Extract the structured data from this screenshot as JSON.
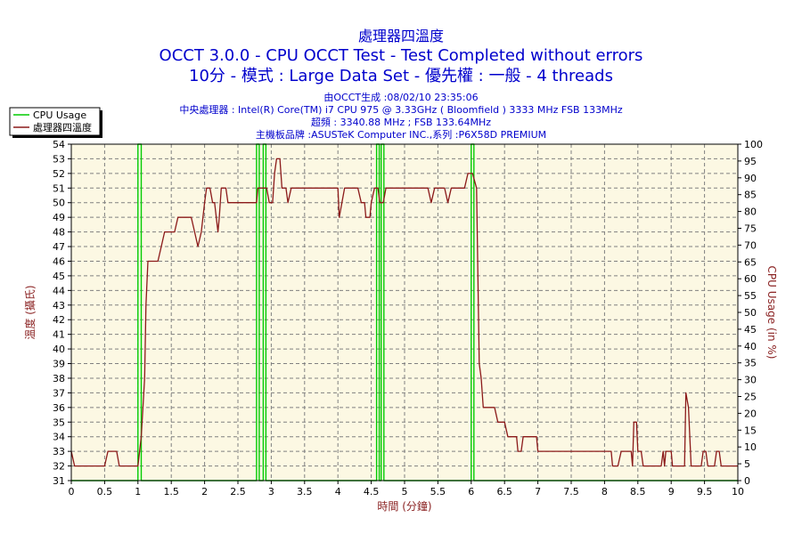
{
  "header": {
    "title_zh": "處理器四溫度",
    "line1": "OCCT 3.0.0 - CPU OCCT Test - Test Completed without errors",
    "line2": "10分 - 模式 : Large Data Set - 優先權 : 一般 - 4 threads",
    "info": [
      "由OCCT生成 :08/02/10 23:35:06",
      "中央處理器 : Intel(R) Core(TM) i7 CPU 975 @ 3.33GHz ( Bloomfield ) 3333 MHz FSB 133MHz",
      "超頻 : 3340.88 MHz ; FSB 133.64MHz",
      "主機板品牌 :ASUSTeK Computer INC.,系列 :P6X58D PREMIUM"
    ]
  },
  "colors": {
    "cpu_usage": "#00cc00",
    "temperature": "#8b1a1a",
    "plot_bg": "#fcf8e3",
    "grid": "#808080"
  },
  "chart_data": {
    "type": "line",
    "xlabel": "時間 (分鐘)",
    "ylabel_left": "溫度 (攝氏)",
    "ylabel_right": "CPU Usage (in %)",
    "xlim": [
      0,
      10
    ],
    "ylim_left": [
      31,
      54
    ],
    "ylim_right": [
      0,
      100
    ],
    "x_ticks": [
      "0",
      "0.5",
      "1",
      "1.5",
      "2",
      "2.5",
      "3",
      "3.5",
      "4",
      "4.5",
      "5",
      "5.5",
      "6",
      "6.5",
      "7",
      "7.5",
      "8",
      "8.5",
      "9",
      "9.5",
      "10"
    ],
    "y_ticks_left": [
      "31",
      "32",
      "33",
      "34",
      "35",
      "36",
      "37",
      "38",
      "39",
      "40",
      "41",
      "42",
      "43",
      "44",
      "45",
      "46",
      "47",
      "48",
      "49",
      "50",
      "51",
      "52",
      "53",
      "54"
    ],
    "y_ticks_right": [
      "0",
      "5",
      "10",
      "15",
      "20",
      "25",
      "30",
      "35",
      "40",
      "45",
      "50",
      "55",
      "60",
      "65",
      "70",
      "75",
      "80",
      "85",
      "90",
      "95",
      "100"
    ],
    "grid": true,
    "legend": "top-left",
    "series": [
      {
        "name": "CPU Usage",
        "axis": "right",
        "points": [
          [
            0,
            0
          ],
          [
            1.0,
            0
          ],
          [
            1.0,
            100
          ],
          [
            1.05,
            100
          ],
          [
            1.05,
            0
          ],
          [
            2.78,
            0
          ],
          [
            2.78,
            100
          ],
          [
            2.82,
            100
          ],
          [
            2.82,
            0
          ],
          [
            2.88,
            0
          ],
          [
            2.88,
            100
          ],
          [
            2.92,
            100
          ],
          [
            2.92,
            0
          ],
          [
            4.58,
            0
          ],
          [
            4.58,
            100
          ],
          [
            4.62,
            100
          ],
          [
            4.62,
            0
          ],
          [
            4.65,
            0
          ],
          [
            4.65,
            100
          ],
          [
            4.69,
            100
          ],
          [
            4.69,
            0
          ],
          [
            6.0,
            0
          ],
          [
            6.0,
            100
          ],
          [
            6.04,
            100
          ],
          [
            6.04,
            0
          ],
          [
            10,
            0
          ]
        ]
      },
      {
        "name": "處理器四溫度",
        "axis": "left",
        "points": [
          [
            0,
            33
          ],
          [
            0.05,
            32
          ],
          [
            0.5,
            32
          ],
          [
            0.55,
            33
          ],
          [
            0.68,
            33
          ],
          [
            0.72,
            32
          ],
          [
            1.0,
            32
          ],
          [
            1.05,
            34
          ],
          [
            1.1,
            38
          ],
          [
            1.12,
            43
          ],
          [
            1.15,
            46
          ],
          [
            1.3,
            46
          ],
          [
            1.35,
            47
          ],
          [
            1.4,
            48
          ],
          [
            1.55,
            48
          ],
          [
            1.6,
            49
          ],
          [
            1.8,
            49
          ],
          [
            1.85,
            48
          ],
          [
            1.9,
            47
          ],
          [
            1.95,
            48
          ],
          [
            2.0,
            50
          ],
          [
            2.03,
            51
          ],
          [
            2.08,
            51
          ],
          [
            2.12,
            50
          ],
          [
            2.15,
            50
          ],
          [
            2.2,
            48
          ],
          [
            2.22,
            49
          ],
          [
            2.25,
            51
          ],
          [
            2.32,
            51
          ],
          [
            2.35,
            50
          ],
          [
            2.78,
            50
          ],
          [
            2.8,
            51
          ],
          [
            2.93,
            51
          ],
          [
            2.97,
            50
          ],
          [
            3.02,
            50
          ],
          [
            3.05,
            52
          ],
          [
            3.08,
            53
          ],
          [
            3.13,
            53
          ],
          [
            3.16,
            51
          ],
          [
            3.22,
            51
          ],
          [
            3.25,
            50
          ],
          [
            3.3,
            51
          ],
          [
            4.0,
            51
          ],
          [
            4.02,
            49
          ],
          [
            4.06,
            50
          ],
          [
            4.1,
            51
          ],
          [
            4.3,
            51
          ],
          [
            4.35,
            50
          ],
          [
            4.4,
            50
          ],
          [
            4.42,
            49
          ],
          [
            4.48,
            49
          ],
          [
            4.5,
            50
          ],
          [
            4.55,
            51
          ],
          [
            4.6,
            51
          ],
          [
            4.63,
            50
          ],
          [
            4.68,
            50
          ],
          [
            4.72,
            51
          ],
          [
            5.35,
            51
          ],
          [
            5.4,
            50
          ],
          [
            5.45,
            51
          ],
          [
            5.6,
            51
          ],
          [
            5.65,
            50
          ],
          [
            5.7,
            51
          ],
          [
            5.9,
            51
          ],
          [
            5.95,
            52
          ],
          [
            6.02,
            52
          ],
          [
            6.08,
            51
          ],
          [
            6.1,
            45
          ],
          [
            6.12,
            39
          ],
          [
            6.15,
            38
          ],
          [
            6.18,
            36
          ],
          [
            6.35,
            36
          ],
          [
            6.4,
            35
          ],
          [
            6.5,
            35
          ],
          [
            6.55,
            34
          ],
          [
            6.68,
            34
          ],
          [
            6.7,
            33
          ],
          [
            6.75,
            33
          ],
          [
            6.78,
            34
          ],
          [
            6.98,
            34
          ],
          [
            7.0,
            33
          ],
          [
            7.03,
            33
          ],
          [
            7.06,
            33
          ],
          [
            8.1,
            33
          ],
          [
            8.12,
            32
          ],
          [
            8.2,
            32
          ],
          [
            8.25,
            33
          ],
          [
            8.4,
            33
          ],
          [
            8.42,
            32
          ],
          [
            8.44,
            35
          ],
          [
            8.48,
            35
          ],
          [
            8.5,
            33
          ],
          [
            8.55,
            33
          ],
          [
            8.58,
            32
          ],
          [
            8.85,
            32
          ],
          [
            8.88,
            33
          ],
          [
            8.9,
            32
          ],
          [
            8.92,
            33
          ],
          [
            9.0,
            33
          ],
          [
            9.02,
            32
          ],
          [
            9.2,
            32
          ],
          [
            9.22,
            37
          ],
          [
            9.26,
            36
          ],
          [
            9.3,
            32
          ],
          [
            9.45,
            32
          ],
          [
            9.48,
            33
          ],
          [
            9.52,
            33
          ],
          [
            9.55,
            32
          ],
          [
            9.65,
            32
          ],
          [
            9.68,
            33
          ],
          [
            9.72,
            33
          ],
          [
            9.75,
            32
          ],
          [
            10,
            32
          ]
        ]
      }
    ]
  }
}
